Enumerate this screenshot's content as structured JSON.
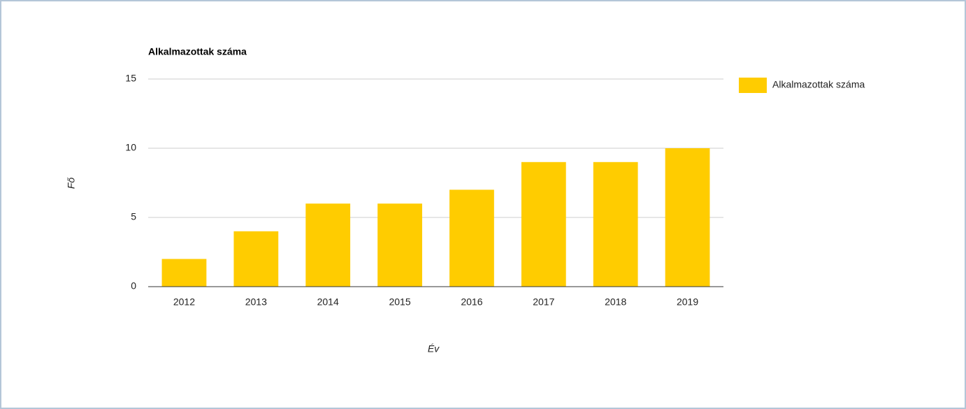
{
  "chart_data": {
    "type": "bar",
    "title": "Alkalmazottak száma",
    "x_label": "Év",
    "y_label": "Fő",
    "categories": [
      "2012",
      "2013",
      "2014",
      "2015",
      "2016",
      "2017",
      "2018",
      "2019"
    ],
    "series": [
      {
        "name": "Alkalmazottak száma",
        "color": "#ffcc00",
        "values": [
          2,
          4,
          6,
          6,
          7,
          9,
          9,
          10
        ]
      }
    ],
    "ylim": [
      0,
      15
    ],
    "yticks": [
      0,
      5,
      10,
      15
    ],
    "grid": true,
    "legend": "right"
  }
}
